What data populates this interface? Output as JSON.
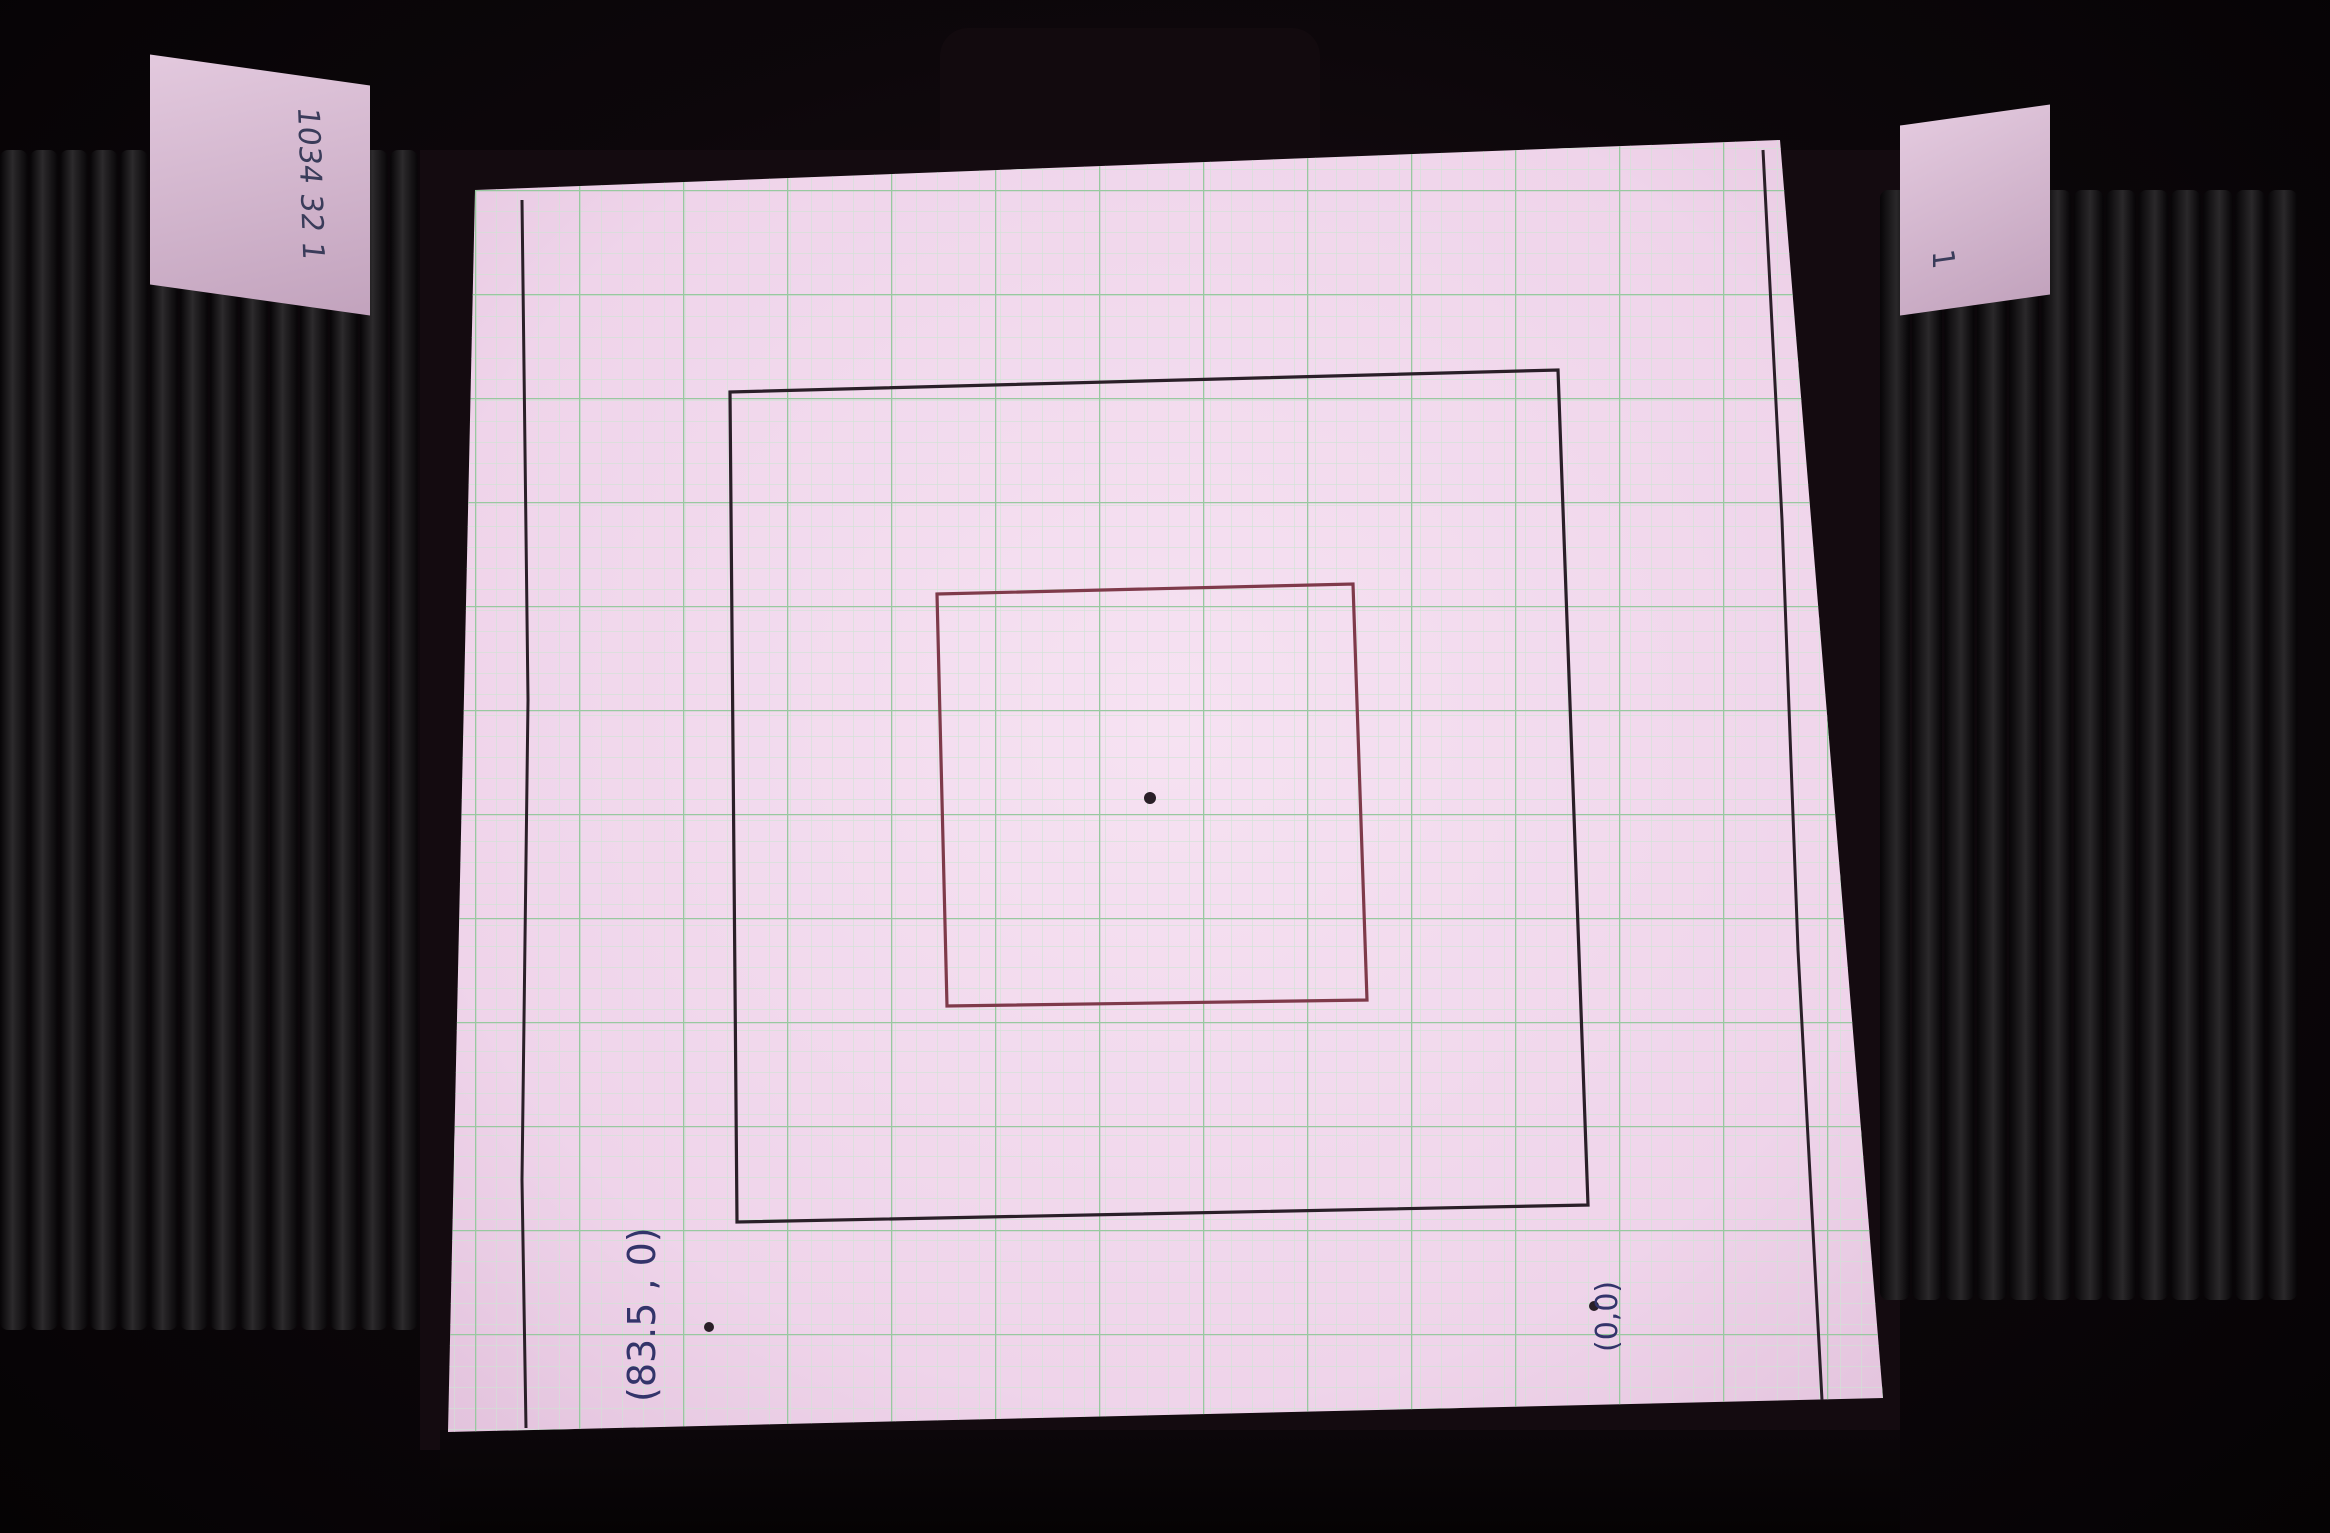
{
  "scene": {
    "subject": "graph paper on an illuminated camera stage",
    "colors": {
      "paper": "#f2dcef",
      "grid_major": "#98c8a0",
      "grid_minor": "#cfe3d4",
      "ink": "#2a1f28",
      "red_ink": "#7e3a4a",
      "blue_ink": "#33346a"
    }
  },
  "annotations": {
    "left_coordinate": "(83.5 , 0)",
    "right_coordinate": "(0,0)"
  },
  "side_labels": {
    "left_card": "1034 32 1",
    "right_card": "1"
  }
}
